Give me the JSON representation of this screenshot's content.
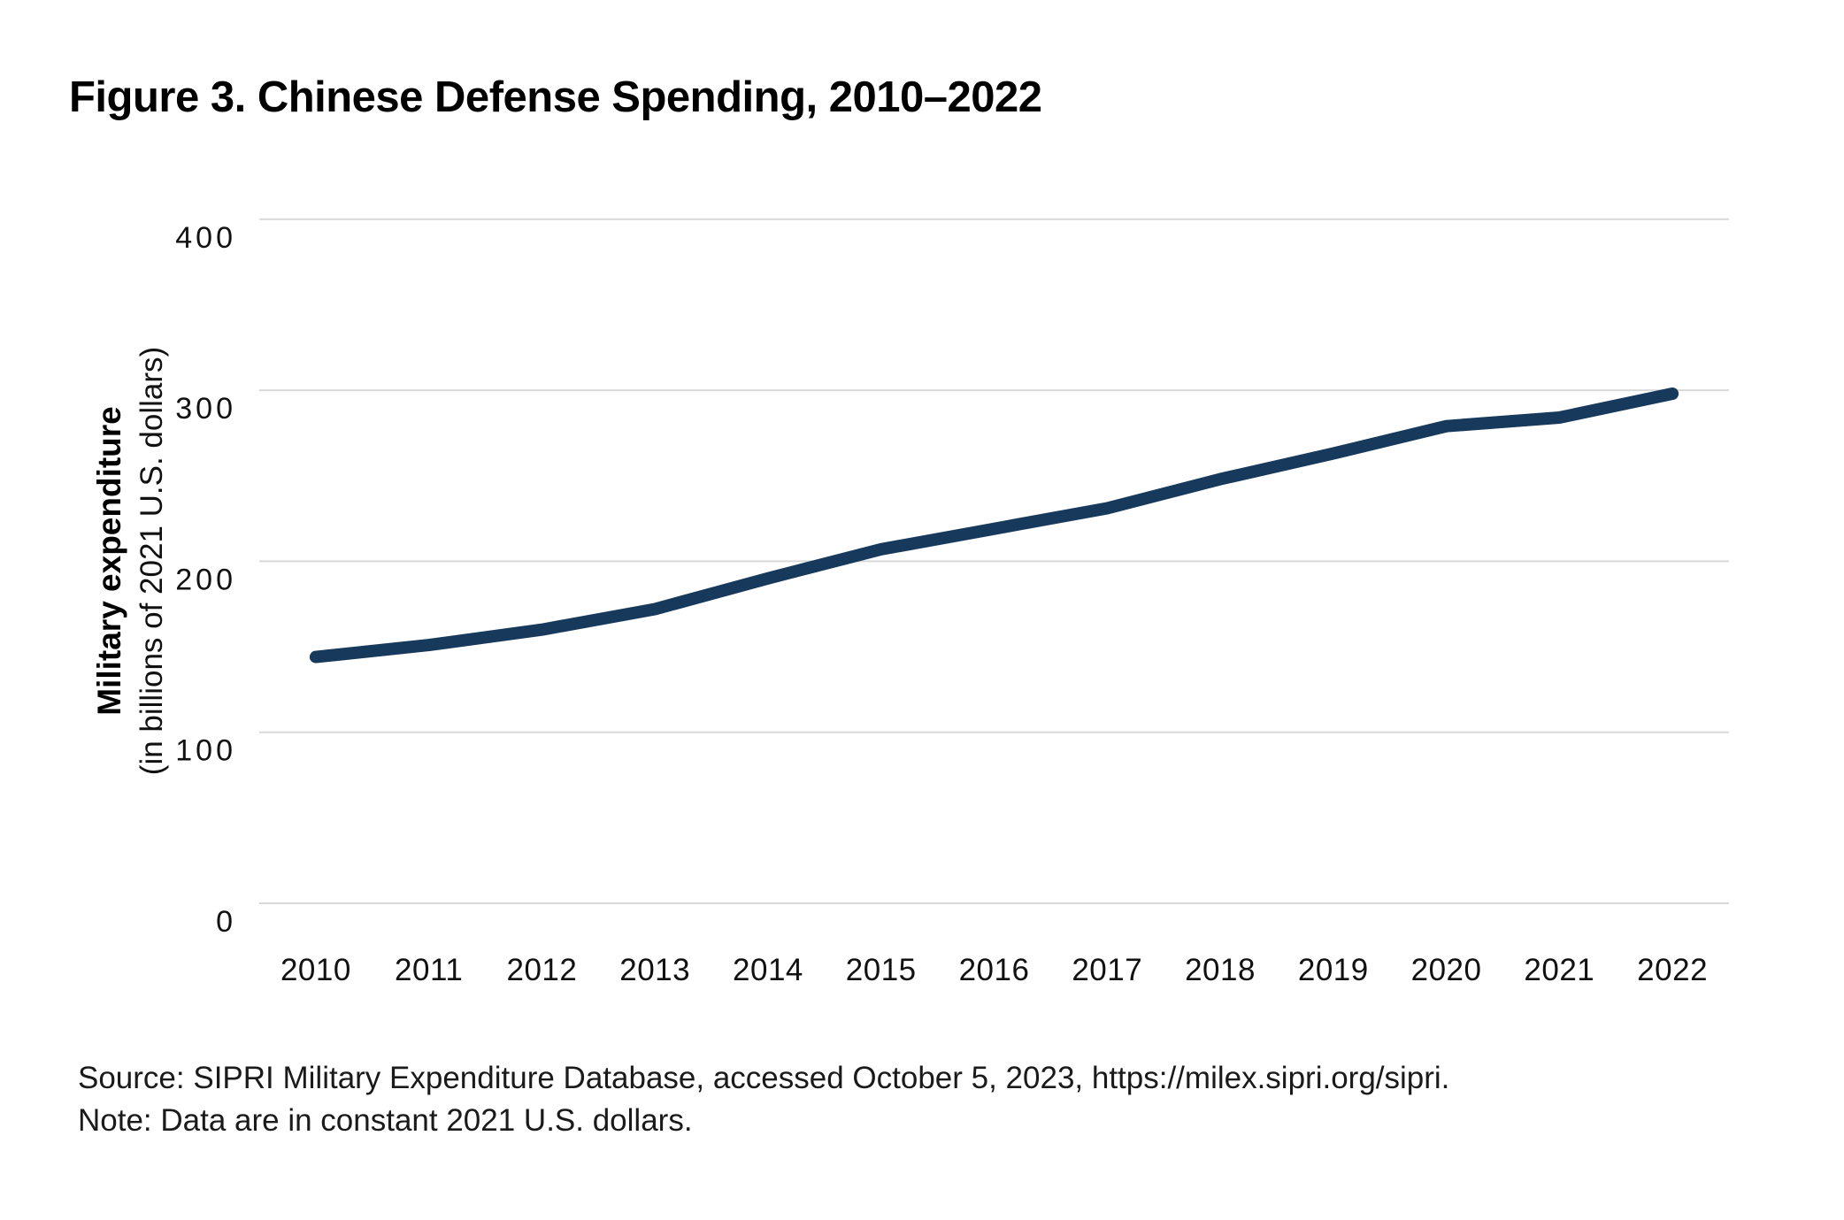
{
  "title": "Figure 3. Chinese Defense Spending, 2010–2022",
  "y_axis_title_bold": "Military expenditure",
  "y_axis_title_sub": "(in billions of 2021 U.S. dollars)",
  "source_line": "Source: SIPRI Military Expenditure Database, accessed October 5, 2023, https://milex.sipri.org/sipri.",
  "note_line": "Note: Data are in constant 2021 U.S. dollars.",
  "colors": {
    "line": "#17395c",
    "gridline": "#d9d9d9",
    "text": "#111111"
  },
  "chart_data": {
    "type": "line",
    "title": "Figure 3. Chinese Defense Spending, 2010–2022",
    "xlabel": "",
    "ylabel": "Military expenditure (in billions of 2021 U.S. dollars)",
    "x": [
      2010,
      2011,
      2012,
      2013,
      2014,
      2015,
      2016,
      2017,
      2018,
      2019,
      2020,
      2021,
      2022
    ],
    "values": [
      144,
      151,
      160,
      172,
      190,
      207,
      219,
      231,
      248,
      263,
      279,
      284,
      298
    ],
    "series_name": "Chinese military expenditure",
    "ylim": [
      0,
      400
    ],
    "yticks": [
      0,
      100,
      200,
      300,
      400
    ],
    "grid": "horizontal",
    "legend": "none"
  }
}
